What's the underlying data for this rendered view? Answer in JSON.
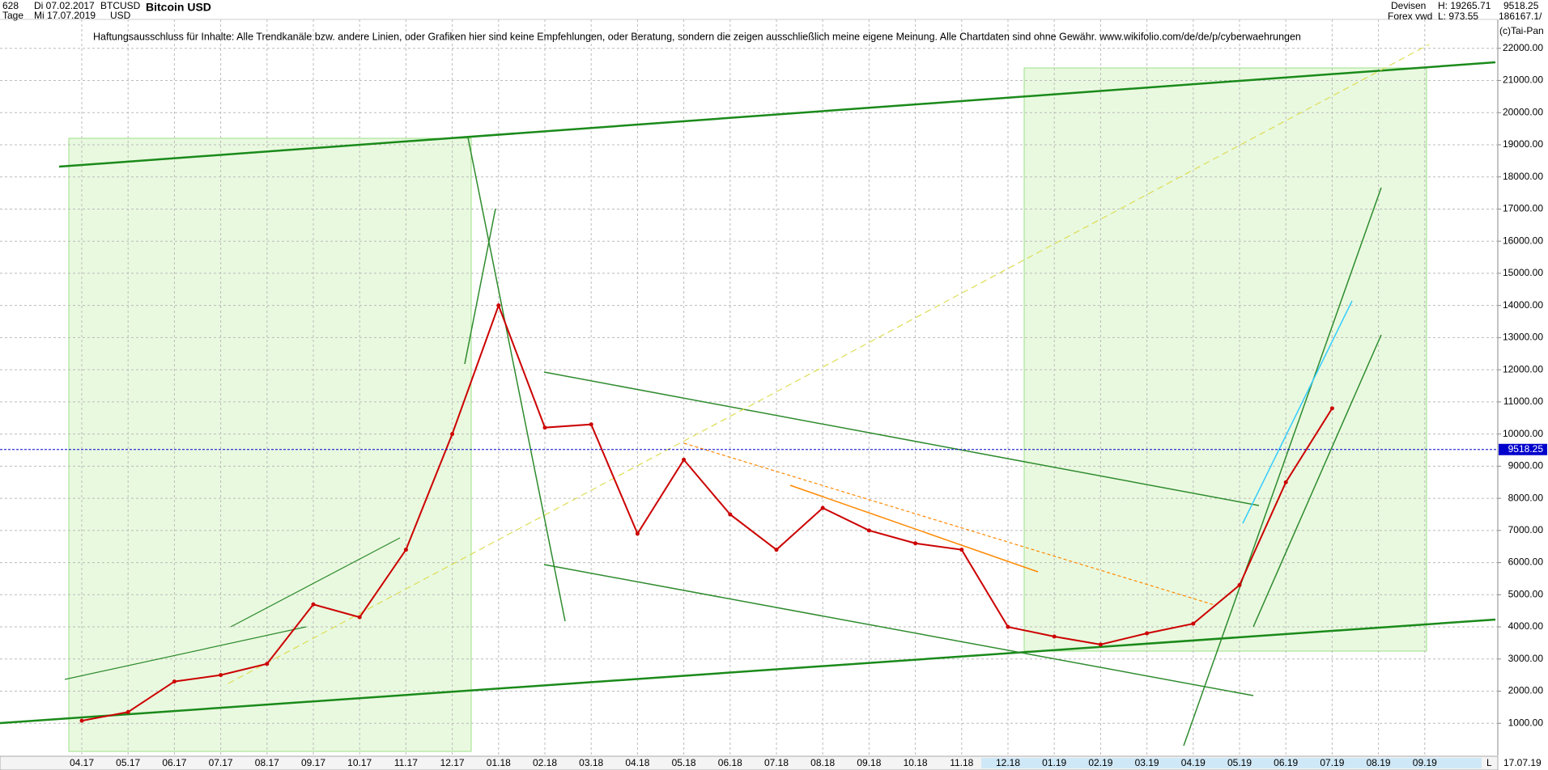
{
  "header": {
    "id": "628",
    "date_from": "Di 07.02.2017",
    "symbol": "BTCUSD",
    "title": "Bitcoin USD",
    "period": "Tage",
    "date_to": "Mi 17.07.2019",
    "currency": "USD",
    "market": "Devisen",
    "high": "H: 19265.71",
    "last": "9518.25",
    "source": "Forex vwd",
    "low": "L: 973.55",
    "volume": "186167.1/",
    "copyright": "(c)Tai-Pan",
    "disclaimer": "Haftungsausschluss für Inhalte: Alle Trendkanäle bzw. andere Linien, oder Grafiken hier sind keine Empfehlungen, oder Beratung, sondern die zeigen ausschließlich meine eigene Meinung. Alle Chartdaten sind ohne Gewähr.  www.wikifolio.com/de/de/p/cyberwaehrungen",
    "end_date": "17.07.19",
    "scale_mode": "L"
  },
  "chart_data": {
    "type": "line",
    "title": "Bitcoin USD",
    "x": [
      "04.17",
      "05.17",
      "06.17",
      "07.17",
      "08.17",
      "09.17",
      "10.17",
      "11.17",
      "12.17",
      "01.18",
      "02.18",
      "03.18",
      "04.18",
      "05.18",
      "06.18",
      "07.18",
      "08.18",
      "09.18",
      "10.18",
      "11.18",
      "12.18",
      "01.19",
      "02.19",
      "03.19",
      "04.19",
      "05.19",
      "06.19",
      "07.19",
      "08.19",
      "09.19"
    ],
    "series": [
      {
        "name": "BTCUSD",
        "color": "#cc0000",
        "values": [
          1080,
          1350,
          2300,
          2500,
          2850,
          4700,
          4300,
          6400,
          10000,
          14000,
          10200,
          10300,
          6900,
          9200,
          7500,
          6400,
          7700,
          7000,
          6600,
          6400,
          4000,
          3700,
          3450,
          3800,
          4100,
          5300,
          8500,
          10800,
          null,
          null
        ]
      }
    ],
    "price_line": 9518.25,
    "ylim": [
      0,
      22900
    ],
    "yticks": [
      {
        "value": 1000,
        "label": "1000.00"
      },
      {
        "value": 2000,
        "label": "2000.00"
      },
      {
        "value": 3000,
        "label": "3000.00"
      },
      {
        "value": 4000,
        "label": "4000.00"
      },
      {
        "value": 5000,
        "label": "5000.00"
      },
      {
        "value": 6000,
        "label": "6000.00"
      },
      {
        "value": 7000,
        "label": "7000.00"
      },
      {
        "value": 8000,
        "label": "8000.00"
      },
      {
        "value": 9000,
        "label": "9000.00"
      },
      {
        "value": 10000,
        "label": "10000.00"
      },
      {
        "value": 11000,
        "label": "11000.00"
      },
      {
        "value": 12000,
        "label": "12000.00"
      },
      {
        "value": 13000,
        "label": "13000.00"
      },
      {
        "value": 14000,
        "label": "14000.00"
      },
      {
        "value": 15000,
        "label": "15000.00"
      },
      {
        "value": 16000,
        "label": "16000.00"
      },
      {
        "value": 17000,
        "label": "17000.00"
      },
      {
        "value": 18000,
        "label": "18000.00"
      },
      {
        "value": 19000,
        "label": "19000.00"
      },
      {
        "value": 20000,
        "label": "20000.00"
      },
      {
        "value": 21000,
        "label": "21000.00"
      },
      {
        "value": 22000,
        "label": "22000.00"
      }
    ],
    "grid": true
  }
}
